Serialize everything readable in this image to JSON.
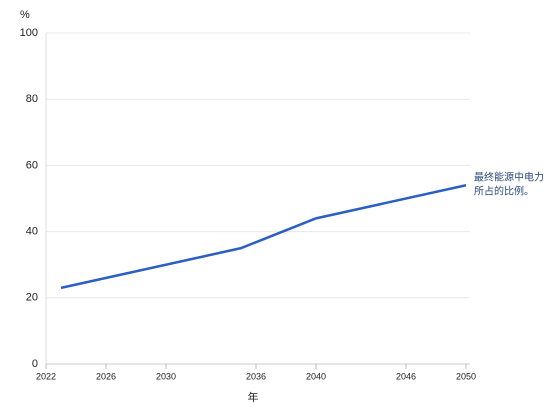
{
  "chart_data": {
    "type": "line",
    "y_label": "%",
    "x_label": "年",
    "annotation": [
      "最终能源中电力",
      "所占的比例。"
    ],
    "x": [
      2023,
      2035,
      2040,
      2050
    ],
    "series": [
      {
        "color": "#2a5fc4",
        "values": [
          23,
          35,
          44,
          54
        ]
      }
    ],
    "xlim": [
      2022,
      2050
    ],
    "xticks": [
      2022,
      2026,
      2030,
      2036,
      2040,
      2046,
      2050
    ],
    "ylim": [
      0,
      100
    ],
    "yticks": [
      0,
      20,
      40,
      60,
      80,
      100
    ],
    "grid": true
  }
}
